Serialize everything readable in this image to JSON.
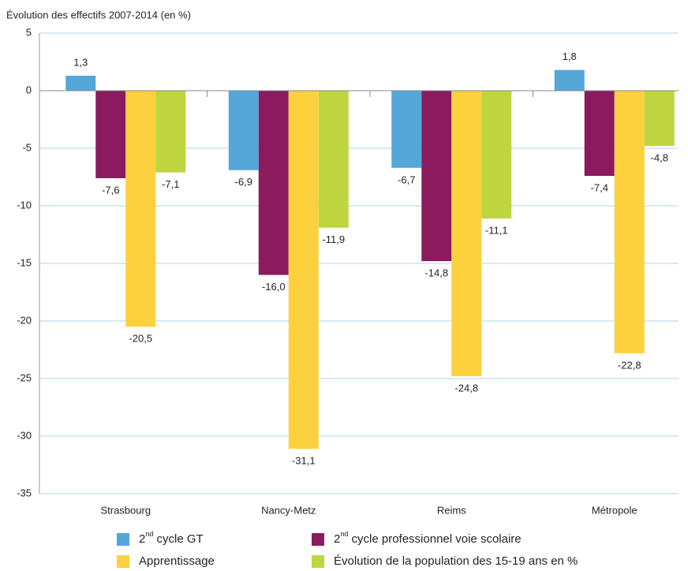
{
  "chart_data": {
    "type": "bar",
    "y_axis_title": "Évolution des effectifs 2007-2014 (en %)",
    "categories": [
      "Strasbourg",
      "Nancy-Metz",
      "Reims",
      "Métropole"
    ],
    "series": [
      {
        "name": "2nd cycle GT",
        "color": "#55a7da",
        "values": [
          1.3,
          -6.9,
          -6.7,
          1.8
        ],
        "value_labels": [
          "1,3",
          "-6,9",
          "-6,7",
          "1,8"
        ]
      },
      {
        "name": "2nd cycle professionnel voie scolaire",
        "color": "#8b1a5f",
        "values": [
          -7.6,
          -16.0,
          -14.8,
          -7.4
        ],
        "value_labels": [
          "-7,6",
          "-16,0",
          "-14,8",
          "-7,4"
        ]
      },
      {
        "name": "Apprentissage",
        "color": "#fdd03e",
        "values": [
          -20.5,
          -31.1,
          -24.8,
          -22.8
        ],
        "value_labels": [
          "-20,5",
          "-31,1",
          "-24,8",
          "-22,8"
        ]
      },
      {
        "name": "Évolution de la population des 15-19 ans en %",
        "color": "#bfd540",
        "values": [
          -7.1,
          -11.9,
          -11.1,
          -4.8
        ],
        "value_labels": [
          "-7,1",
          "-11,9",
          "-11,1",
          "-4,8"
        ]
      }
    ],
    "ylim": [
      -35,
      5
    ],
    "yticks": [
      5,
      0,
      -5,
      -10,
      -15,
      -20,
      -25,
      -30,
      -35
    ],
    "grid": true
  }
}
